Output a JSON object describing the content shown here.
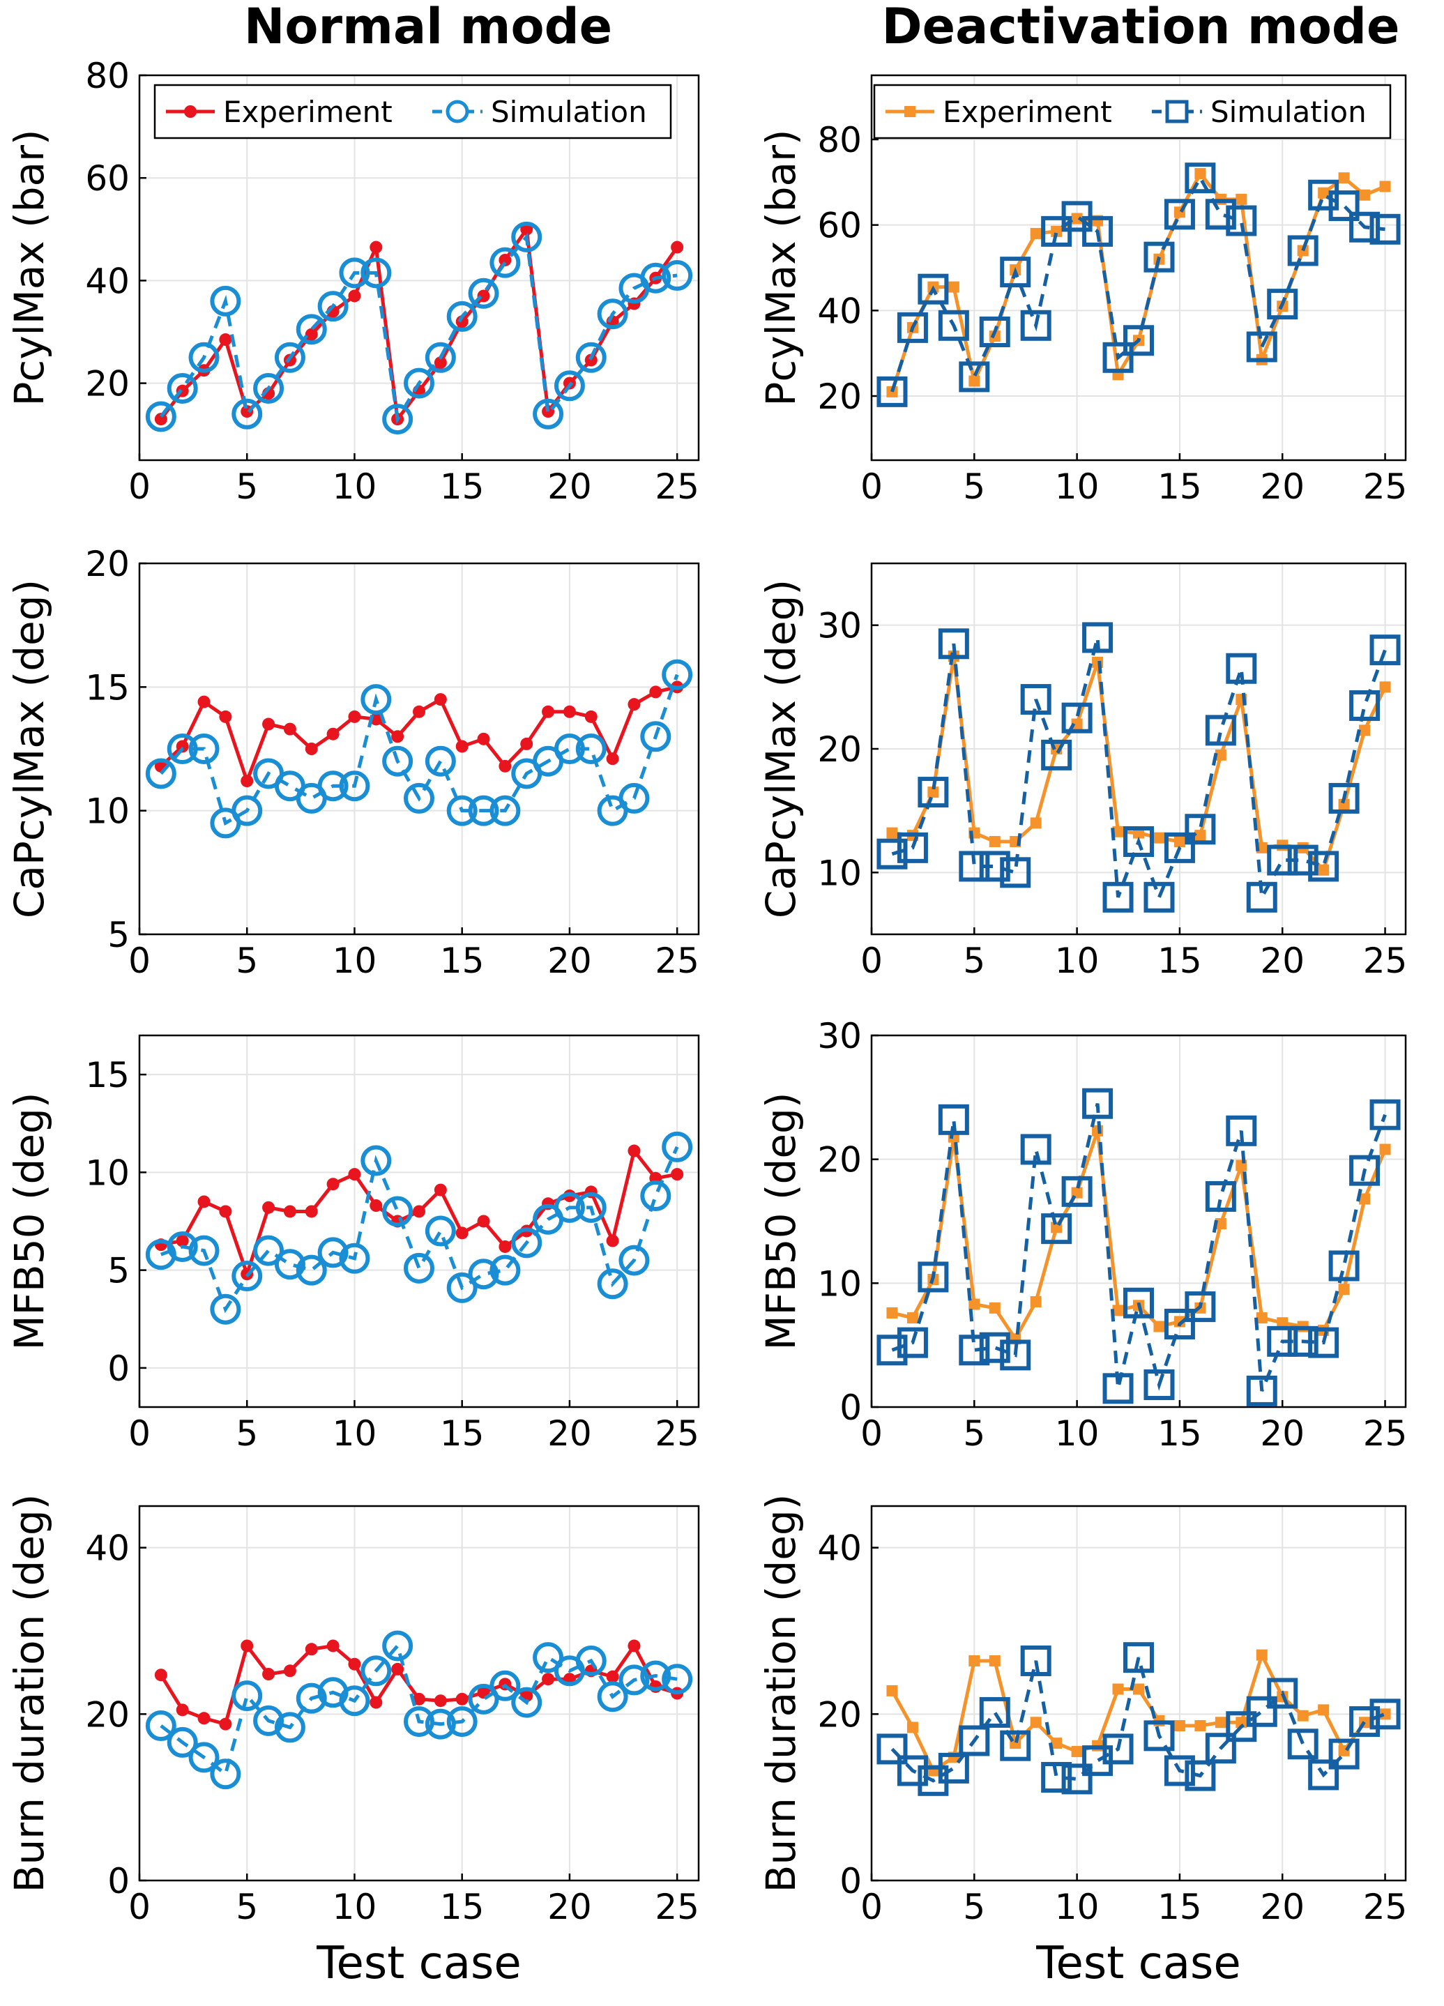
{
  "column_titles": [
    "Normal mode",
    "Deactivation mode"
  ],
  "xlabel": "Test case",
  "legend": {
    "experiment": "Experiment",
    "simulation": "Simulation"
  },
  "colors": {
    "normal_exp": "#e8141e",
    "normal_sim": "#1a8ed4",
    "deact_exp": "#f5922a",
    "deact_sim": "#1560a3",
    "grid": "#e3e3e3",
    "axis": "#000000"
  },
  "chart_data": [
    {
      "type": "line",
      "panel": "normal-pcylmax",
      "title": "",
      "xlabel": "",
      "ylabel": "PcylMax (bar)",
      "xlim": [
        0,
        26
      ],
      "ylim": [
        5,
        80
      ],
      "xticks": [
        0,
        5,
        10,
        15,
        20,
        25
      ],
      "yticks": [
        20,
        40,
        60,
        80
      ],
      "legend": "top-left",
      "x": [
        1,
        2,
        3,
        4,
        5,
        6,
        7,
        8,
        9,
        10,
        11,
        12,
        13,
        14,
        15,
        16,
        17,
        18,
        19,
        20,
        21,
        22,
        23,
        24,
        25
      ],
      "series": [
        {
          "name": "Experiment",
          "values": [
            13,
            18.5,
            22.5,
            28.5,
            14.5,
            18,
            24.5,
            29.5,
            34,
            37,
            46.5,
            13,
            18.5,
            24,
            32,
            37,
            44,
            50,
            14.5,
            20,
            24.5,
            32,
            35.5,
            40.5,
            46.5
          ]
        },
        {
          "name": "Simulation",
          "values": [
            13.5,
            19,
            25,
            36,
            14,
            19,
            25,
            30.5,
            35,
            41.5,
            41.5,
            13,
            20,
            25,
            33,
            37.5,
            43.5,
            48.5,
            14,
            19.5,
            25,
            33.5,
            38.5,
            40.5,
            41
          ]
        }
      ]
    },
    {
      "type": "line",
      "panel": "deact-pcylmax",
      "title": "",
      "xlabel": "",
      "ylabel": "PcylMax (bar)",
      "xlim": [
        0,
        26
      ],
      "ylim": [
        5,
        95
      ],
      "xticks": [
        0,
        5,
        10,
        15,
        20,
        25
      ],
      "yticks": [
        20,
        40,
        60,
        80
      ],
      "legend": "top-right",
      "x": [
        1,
        2,
        3,
        4,
        5,
        6,
        7,
        8,
        9,
        10,
        11,
        12,
        13,
        14,
        15,
        16,
        17,
        18,
        19,
        20,
        21,
        22,
        23,
        24,
        25
      ],
      "series": [
        {
          "name": "Experiment",
          "values": [
            21,
            36,
            45.5,
            45.5,
            23.5,
            34,
            49.5,
            58,
            58.5,
            61.5,
            61,
            25,
            33,
            52,
            63,
            72,
            66,
            66,
            28.5,
            41,
            54,
            67.5,
            71,
            67,
            69
          ]
        },
        {
          "name": "Simulation",
          "values": [
            21,
            36,
            45,
            36.5,
            24.5,
            35,
            49,
            36.5,
            58.5,
            62,
            58.5,
            29,
            33,
            52.5,
            62.5,
            71,
            62.5,
            61,
            31.5,
            41.5,
            54,
            67,
            64.5,
            59.5,
            59
          ]
        }
      ]
    },
    {
      "type": "line",
      "panel": "normal-capcylmax",
      "title": "",
      "xlabel": "",
      "ylabel": "CaPcylMax (deg)",
      "xlim": [
        0,
        26
      ],
      "ylim": [
        5,
        20
      ],
      "xticks": [
        0,
        5,
        10,
        15,
        20,
        25
      ],
      "yticks": [
        5,
        10,
        15,
        20
      ],
      "x": [
        1,
        2,
        3,
        4,
        5,
        6,
        7,
        8,
        9,
        10,
        11,
        12,
        13,
        14,
        15,
        16,
        17,
        18,
        19,
        20,
        21,
        22,
        23,
        24,
        25
      ],
      "series": [
        {
          "name": "Experiment",
          "values": [
            11.8,
            12.6,
            14.4,
            13.8,
            11.2,
            13.5,
            13.3,
            12.5,
            13.1,
            13.8,
            13.7,
            13,
            14,
            14.5,
            12.6,
            12.9,
            11.8,
            12.7,
            14,
            14,
            13.8,
            12.1,
            14.3,
            14.8,
            15
          ]
        },
        {
          "name": "Simulation",
          "values": [
            11.5,
            12.5,
            12.5,
            9.5,
            10,
            11.5,
            11,
            10.5,
            11,
            11,
            14.5,
            12,
            10.5,
            12,
            10,
            10,
            10,
            11.5,
            12,
            12.5,
            12.5,
            10,
            10.5,
            13,
            15.5
          ]
        }
      ]
    },
    {
      "type": "line",
      "panel": "deact-capcylmax",
      "title": "",
      "xlabel": "",
      "ylabel": "CaPcylMax (deg)",
      "xlim": [
        0,
        26
      ],
      "ylim": [
        5,
        35
      ],
      "xticks": [
        0,
        5,
        10,
        15,
        20,
        25
      ],
      "yticks": [
        10,
        20,
        30
      ],
      "x": [
        1,
        2,
        3,
        4,
        5,
        6,
        7,
        8,
        9,
        10,
        11,
        12,
        13,
        14,
        15,
        16,
        17,
        18,
        19,
        20,
        21,
        22,
        23,
        24,
        25
      ],
      "series": [
        {
          "name": "Experiment",
          "values": [
            13.2,
            13,
            16.5,
            27.5,
            13.2,
            12.5,
            12.5,
            14,
            20,
            22,
            27,
            13.3,
            13.2,
            12.8,
            12.5,
            13,
            19.5,
            24,
            12,
            12.2,
            12,
            10.2,
            15.5,
            21.5,
            25
          ]
        },
        {
          "name": "Simulation",
          "values": [
            11.5,
            12,
            16.5,
            28.5,
            10.5,
            10.5,
            10,
            24,
            19.5,
            22.5,
            29,
            8,
            12.5,
            8,
            12,
            13.5,
            21.5,
            26.5,
            8,
            11,
            11,
            10.5,
            16,
            23.5,
            28
          ]
        }
      ]
    },
    {
      "type": "line",
      "panel": "normal-mfb50",
      "title": "",
      "xlabel": "",
      "ylabel": "MFB50 (deg)",
      "xlim": [
        0,
        26
      ],
      "ylim": [
        -2,
        17
      ],
      "xticks": [
        0,
        5,
        10,
        15,
        20,
        25
      ],
      "yticks": [
        0,
        5,
        10,
        15
      ],
      "x": [
        1,
        2,
        3,
        4,
        5,
        6,
        7,
        8,
        9,
        10,
        11,
        12,
        13,
        14,
        15,
        16,
        17,
        18,
        19,
        20,
        21,
        22,
        23,
        24,
        25
      ],
      "series": [
        {
          "name": "Experiment",
          "values": [
            6.3,
            6.5,
            8.5,
            8,
            4.8,
            8.2,
            8,
            8,
            9.4,
            9.9,
            8.3,
            7.5,
            8,
            9.1,
            6.9,
            7.5,
            6.2,
            7,
            8.4,
            8.8,
            9,
            6.5,
            11.1,
            9.7,
            9.9
          ]
        },
        {
          "name": "Simulation",
          "values": [
            5.8,
            6.2,
            6,
            3,
            4.7,
            6,
            5.3,
            5,
            5.9,
            5.6,
            10.6,
            8,
            5.1,
            7,
            4.1,
            4.8,
            5,
            6.4,
            7.6,
            8.2,
            8.2,
            4.3,
            5.5,
            8.8,
            11.3
          ]
        }
      ]
    },
    {
      "type": "line",
      "panel": "deact-mfb50",
      "title": "",
      "xlabel": "",
      "ylabel": "MFB50 (deg)",
      "xlim": [
        0,
        26
      ],
      "ylim": [
        0,
        30
      ],
      "xticks": [
        0,
        5,
        10,
        15,
        20,
        25
      ],
      "yticks": [
        0,
        10,
        20,
        30
      ],
      "x": [
        1,
        2,
        3,
        4,
        5,
        6,
        7,
        8,
        9,
        10,
        11,
        12,
        13,
        14,
        15,
        16,
        17,
        18,
        19,
        20,
        21,
        22,
        23,
        24,
        25
      ],
      "series": [
        {
          "name": "Experiment",
          "values": [
            7.6,
            7.2,
            10.3,
            21.8,
            8.3,
            8,
            5.5,
            8.5,
            14.5,
            17.3,
            22.3,
            7.8,
            8.2,
            6.5,
            6.9,
            8,
            14.8,
            19.5,
            7.2,
            6.8,
            6.5,
            6.2,
            9.5,
            16.8,
            20.8
          ]
        },
        {
          "name": "Simulation",
          "values": [
            4.6,
            5.2,
            10.5,
            23.2,
            4.6,
            4.8,
            4.2,
            20.8,
            14.4,
            17.4,
            24.5,
            1.5,
            8.4,
            1.8,
            6.7,
            8.1,
            17,
            22.3,
            1.3,
            5.3,
            5.3,
            5.2,
            11.4,
            19.1,
            23.6
          ]
        }
      ]
    },
    {
      "type": "line",
      "panel": "normal-burn",
      "title": "",
      "xlabel": "Test case",
      "ylabel": "Burn duration (deg)",
      "xlim": [
        0,
        26
      ],
      "ylim": [
        0,
        45
      ],
      "xticks": [
        0,
        5,
        10,
        15,
        20,
        25
      ],
      "yticks": [
        0,
        20,
        40
      ],
      "x": [
        1,
        2,
        3,
        4,
        5,
        6,
        7,
        8,
        9,
        10,
        11,
        12,
        13,
        14,
        15,
        16,
        17,
        18,
        19,
        20,
        21,
        22,
        23,
        24,
        25
      ],
      "series": [
        {
          "name": "Experiment",
          "values": [
            24.7,
            20.5,
            19.5,
            18.8,
            28.2,
            24.8,
            25.2,
            27.8,
            28.2,
            26,
            21.4,
            25.4,
            21.8,
            21.6,
            21.8,
            22.6,
            23.6,
            22.2,
            24.2,
            24.2,
            25.2,
            24.5,
            28.2,
            23.3,
            22.5
          ]
        },
        {
          "name": "Simulation",
          "values": [
            18.6,
            16.6,
            14.8,
            12.8,
            22.2,
            19.2,
            18.4,
            21.9,
            22.6,
            21.6,
            25.2,
            28.2,
            19.1,
            18.8,
            19.1,
            21.8,
            23.4,
            21.4,
            26.8,
            25.2,
            26.4,
            22.1,
            24.1,
            24.6,
            24.2
          ]
        }
      ]
    },
    {
      "type": "line",
      "panel": "deact-burn",
      "title": "",
      "xlabel": "Test case",
      "ylabel": "Burn duration (deg)",
      "xlim": [
        0,
        26
      ],
      "ylim": [
        0,
        45
      ],
      "xticks": [
        0,
        5,
        10,
        15,
        20,
        25
      ],
      "yticks": [
        0,
        20,
        40
      ],
      "x": [
        1,
        2,
        3,
        4,
        5,
        6,
        7,
        8,
        9,
        10,
        11,
        12,
        13,
        14,
        15,
        16,
        17,
        18,
        19,
        20,
        21,
        22,
        23,
        24,
        25
      ],
      "series": [
        {
          "name": "Experiment",
          "values": [
            22.8,
            18.4,
            13.2,
            14.8,
            26.4,
            26.4,
            16.5,
            19,
            16.5,
            15.5,
            16.2,
            23,
            23,
            19.2,
            18.6,
            18.6,
            19,
            19,
            27.1,
            22.1,
            19.8,
            20.5,
            15.6,
            19,
            20
          ]
        },
        {
          "name": "Simulation",
          "values": [
            15.8,
            13.2,
            12,
            13.5,
            16.8,
            20.2,
            16.2,
            26.4,
            12.4,
            12.2,
            14.4,
            15.8,
            26.8,
            17.4,
            13.2,
            12.6,
            15.9,
            18.5,
            20.3,
            22.5,
            16.4,
            12.7,
            15.2,
            19.1,
            20
          ]
        }
      ]
    }
  ]
}
